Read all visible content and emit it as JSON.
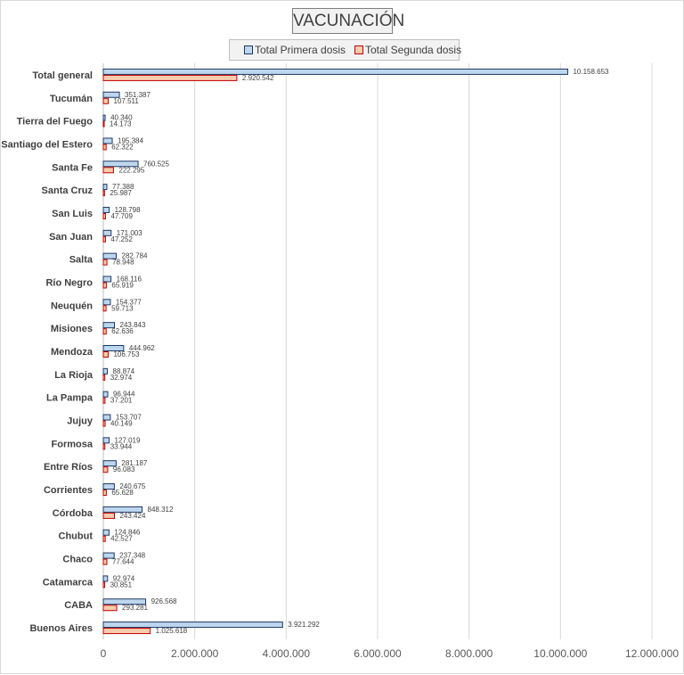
{
  "chart_data": {
    "type": "bar",
    "orientation": "horizontal",
    "title": "VACUNACIÓN",
    "categories": [
      "Total general",
      "Tucumán",
      "Tierra del Fuego",
      "Santiago del Estero",
      "Santa Fe",
      "Santa Cruz",
      "San Luis",
      "San Juan",
      "Salta",
      "Río Negro",
      "Neuquén",
      "Misiones",
      "Mendoza",
      "La Rioja",
      "La Pampa",
      "Jujuy",
      "Formosa",
      "Entre Ríos",
      "Corrientes",
      "Córdoba",
      "Chubut",
      "Chaco",
      "Catamarca",
      "CABA",
      "Buenos Aires"
    ],
    "series": [
      {
        "name": "Total Primera dosis",
        "color": "#bdd7ee",
        "border": "#1f3864",
        "values": [
          10158653,
          351387,
          40340,
          195384,
          760525,
          77388,
          128798,
          171003,
          282784,
          168116,
          154377,
          243843,
          444962,
          88874,
          96944,
          153707,
          127019,
          281187,
          240675,
          848312,
          124846,
          237348,
          92974,
          926568,
          3921292
        ],
        "labels": [
          "10.158.653",
          "351.387",
          "40.340",
          "195.384",
          "760.525",
          "77.388",
          "128.798",
          "171.003",
          "282.784",
          "168.116",
          "154.377",
          "243.843",
          "444.962",
          "88.874",
          "96.944",
          "153.707",
          "127.019",
          "281.187",
          "240.675",
          "848.312",
          "124.846",
          "237.348",
          "92.974",
          "926.568",
          "3.921.292"
        ]
      },
      {
        "name": "Total Segunda dosis",
        "color": "#f8cbad",
        "border": "#c00000",
        "values": [
          2920542,
          107511,
          14173,
          62322,
          222295,
          25987,
          47709,
          47252,
          78948,
          65919,
          59713,
          62636,
          106753,
          32974,
          37201,
          40149,
          33944,
          96083,
          65628,
          243424,
          42527,
          77644,
          30851,
          293281,
          1025618
        ],
        "labels": [
          "2.920.542",
          "107.511",
          "14.173",
          "62.322",
          "222.295",
          "25.987",
          "47.709",
          "47.252",
          "78.948",
          "65.919",
          "59.713",
          "62.636",
          "106.753",
          "32.974",
          "37.201",
          "40.149",
          "33.944",
          "96.083",
          "65.628",
          "243.424",
          "42.527",
          "77.644",
          "30.851",
          "293.281",
          "1.025.618"
        ]
      }
    ],
    "xlim": [
      0,
      12000000
    ],
    "xticks": [
      0,
      2000000,
      4000000,
      6000000,
      8000000,
      10000000,
      12000000
    ],
    "xtick_labels": [
      "0",
      "2.000.000",
      "4.000.000",
      "6.000.000",
      "8.000.000",
      "10.000.000",
      "12.000.000"
    ],
    "grid": "vertical",
    "legend_position": "top"
  }
}
